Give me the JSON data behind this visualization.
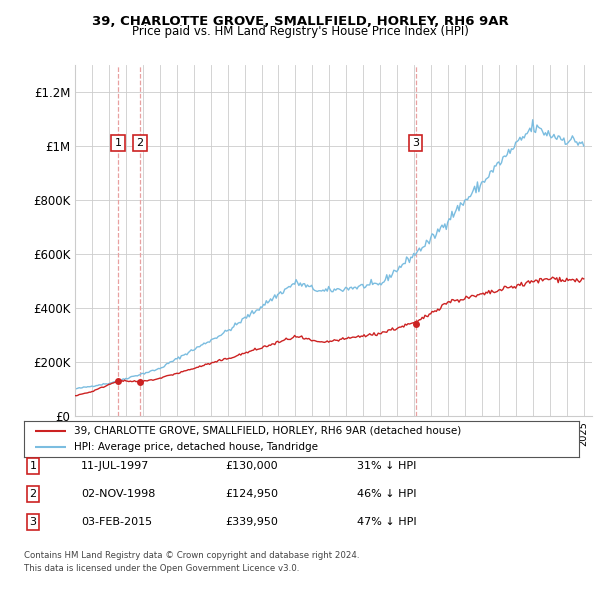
{
  "title_line1": "39, CHARLOTTE GROVE, SMALLFIELD, HORLEY, RH6 9AR",
  "title_line2": "Price paid vs. HM Land Registry's House Price Index (HPI)",
  "ylim": [
    0,
    1300000
  ],
  "yticks": [
    0,
    200000,
    400000,
    600000,
    800000,
    1000000,
    1200000
  ],
  "ytick_labels": [
    "£0",
    "£200K",
    "£400K",
    "£600K",
    "£800K",
    "£1M",
    "£1.2M"
  ],
  "hpi_color": "#7bbde0",
  "price_color": "#cc2222",
  "background_color": "#ffffff",
  "grid_color": "#cccccc",
  "vline_color": "#e8a0a0",
  "transactions": [
    {
      "label": "1",
      "date_str": "11-JUL-1997",
      "year": 1997.53,
      "price": 130000,
      "note": "31% ↓ HPI"
    },
    {
      "label": "2",
      "date_str": "02-NOV-1998",
      "year": 1998.84,
      "price": 124950,
      "note": "46% ↓ HPI"
    },
    {
      "label": "3",
      "date_str": "03-FEB-2015",
      "year": 2015.09,
      "price": 339950,
      "note": "47% ↓ HPI"
    }
  ],
  "legend_entries": [
    "39, CHARLOTTE GROVE, SMALLFIELD, HORLEY, RH6 9AR (detached house)",
    "HPI: Average price, detached house, Tandridge"
  ],
  "footer_line1": "Contains HM Land Registry data © Crown copyright and database right 2024.",
  "footer_line2": "This data is licensed under the Open Government Licence v3.0.",
  "table_data": [
    [
      "1",
      "11-JUL-1997",
      "£130,000",
      "31% ↓ HPI"
    ],
    [
      "2",
      "02-NOV-1998",
      "£124,950",
      "46% ↓ HPI"
    ],
    [
      "3",
      "03-FEB-2015",
      "£339,950",
      "47% ↓ HPI"
    ]
  ]
}
